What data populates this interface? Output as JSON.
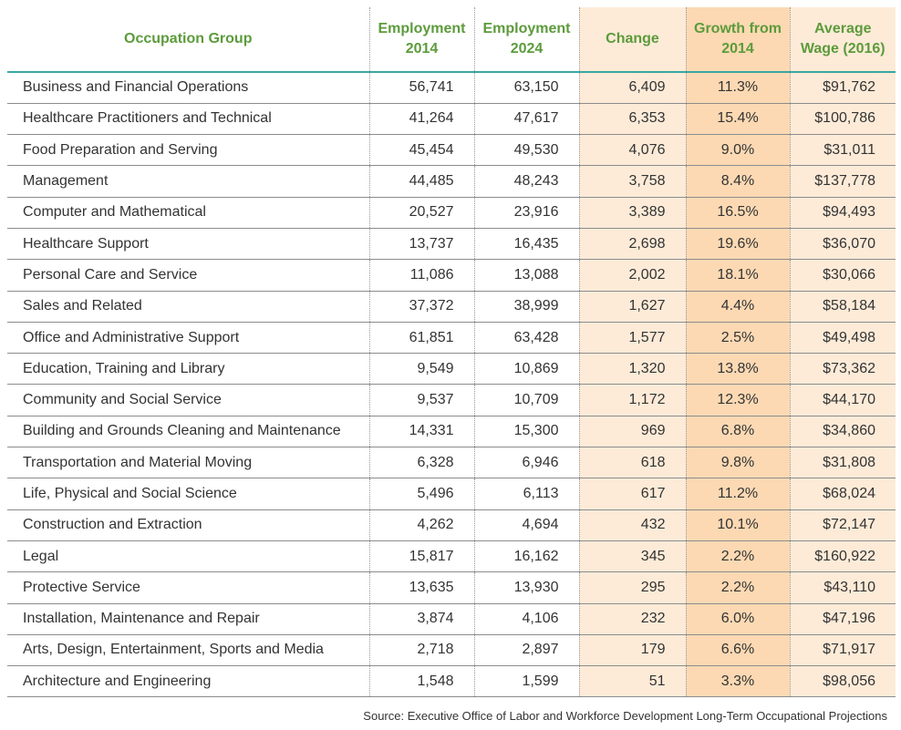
{
  "table": {
    "header": [
      "Occupation Group",
      "Employment\n2014",
      "Employment\n2024",
      "Change",
      "Growth from\n2014",
      "Average\nWage (2016)"
    ],
    "rows": [
      [
        "Business and Financial Operations",
        "56,741",
        "63,150",
        "6,409",
        "11.3%",
        "$91,762"
      ],
      [
        "Healthcare Practitioners and Technical",
        "41,264",
        "47,617",
        "6,353",
        "15.4%",
        "$100,786"
      ],
      [
        "Food Preparation and Serving",
        "45,454",
        "49,530",
        "4,076",
        "9.0%",
        "$31,011"
      ],
      [
        "Management",
        "44,485",
        "48,243",
        "3,758",
        "8.4%",
        "$137,778"
      ],
      [
        "Computer and Mathematical",
        "20,527",
        "23,916",
        "3,389",
        "16.5%",
        "$94,493"
      ],
      [
        "Healthcare Support",
        "13,737",
        "16,435",
        "2,698",
        "19.6%",
        "$36,070"
      ],
      [
        "Personal Care and Service",
        "11,086",
        "13,088",
        "2,002",
        "18.1%",
        "$30,066"
      ],
      [
        "Sales and Related",
        "37,372",
        "38,999",
        "1,627",
        "4.4%",
        "$58,184"
      ],
      [
        "Office and Administrative Support",
        "61,851",
        "63,428",
        "1,577",
        "2.5%",
        "$49,498"
      ],
      [
        "Education, Training and Library",
        "9,549",
        "10,869",
        "1,320",
        "13.8%",
        "$73,362"
      ],
      [
        "Community and Social Service",
        "9,537",
        "10,709",
        "1,172",
        "12.3%",
        "$44,170"
      ],
      [
        "Building and Grounds Cleaning and Maintenance",
        "14,331",
        "15,300",
        "969",
        "6.8%",
        "$34,860"
      ],
      [
        "Transportation and Material Moving",
        "6,328",
        "6,946",
        "618",
        "9.8%",
        "$31,808"
      ],
      [
        "Life, Physical and Social Science",
        "5,496",
        "6,113",
        "617",
        "11.2%",
        "$68,024"
      ],
      [
        "Construction and Extraction",
        "4,262",
        "4,694",
        "432",
        "10.1%",
        "$72,147"
      ],
      [
        "Legal",
        "15,817",
        "16,162",
        "345",
        "2.2%",
        "$160,922"
      ],
      [
        "Protective Service",
        "13,635",
        "13,930",
        "295",
        "2.2%",
        "$43,110"
      ],
      [
        "Installation, Maintenance and Repair",
        "3,874",
        "4,106",
        "232",
        "6.0%",
        "$47,196"
      ],
      [
        "Arts, Design, Entertainment, Sports and Media",
        "2,718",
        "2,897",
        "179",
        "6.6%",
        "$71,917"
      ],
      [
        "Architecture and Engineering",
        "1,548",
        "1,599",
        "51",
        "3.3%",
        "$98,056"
      ]
    ]
  },
  "source": "Source: Executive Office of Labor and Workforce Development Long-Term Occupational Projections"
}
